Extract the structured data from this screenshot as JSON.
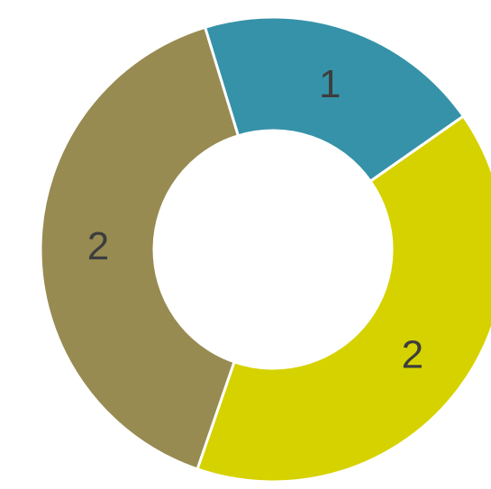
{
  "chart_data": {
    "type": "pie",
    "variant": "donut",
    "slices": [
      {
        "label": "1",
        "value": 1,
        "color": "#3592a8"
      },
      {
        "label": "2",
        "value": 2,
        "color": "#d6d200"
      },
      {
        "label": "2",
        "value": 2,
        "color": "#978b52"
      }
    ],
    "title": "",
    "legend": "none",
    "start_angle_deg": -17,
    "direction": "clockwise",
    "slice_separator_color": "#ffffff"
  }
}
